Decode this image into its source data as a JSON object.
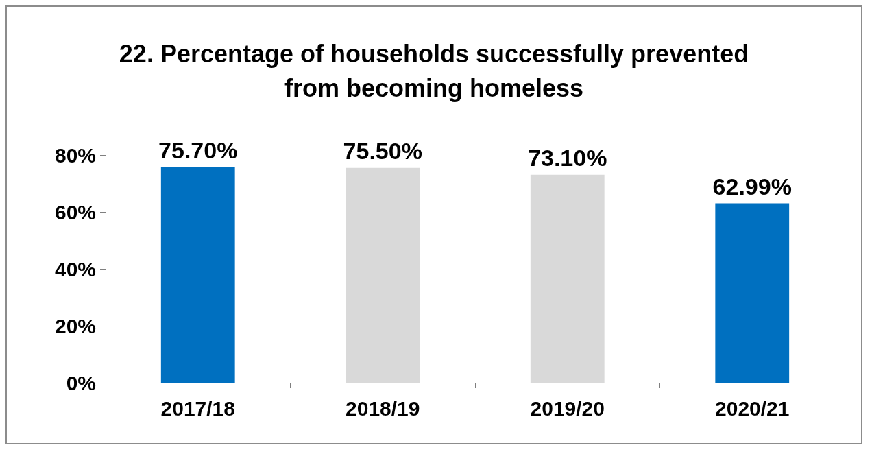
{
  "chart_data": {
    "type": "bar",
    "title": "22. Percentage of households successfully prevented\nfrom becoming homeless",
    "categories": [
      "2017/18",
      "2018/19",
      "2019/20",
      "2020/21"
    ],
    "values": [
      75.7,
      75.5,
      73.1,
      62.99
    ],
    "colors": [
      "#0070c0",
      "#d9d9d9",
      "#d9d9d9",
      "#0070c0"
    ],
    "value_labels": [
      "75.70%",
      "75.50%",
      "73.10%",
      "62.99%"
    ],
    "ylim": [
      0,
      80
    ],
    "yticks": [
      {
        "value": 0,
        "label": "0%"
      },
      {
        "value": 20,
        "label": "20%"
      },
      {
        "value": 40,
        "label": "40%"
      },
      {
        "value": 60,
        "label": "60%"
      },
      {
        "value": 80,
        "label": "80%"
      }
    ],
    "grid": false
  }
}
